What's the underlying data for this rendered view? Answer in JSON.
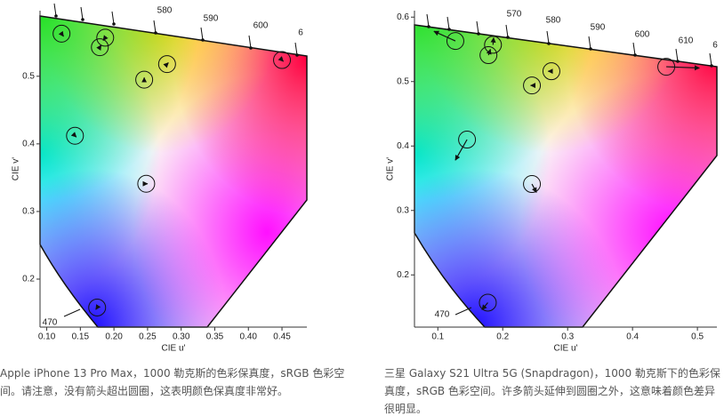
{
  "chart_data": [
    {
      "type": "scatter",
      "x_label": "CIE u'",
      "y_label": "CIE v'",
      "caption": "Apple iPhone 13 Pro Max，1000 勒克斯的色彩保真度，sRGB 色彩空间。请注意，没有箭头超出圆圈，这表明颜色保真度非常好。",
      "xlim": [
        0.09,
        0.487
      ],
      "ylim": [
        0.129,
        0.597
      ],
      "xticks": [
        {
          "value": 0.1,
          "label": "0.10"
        },
        0.15,
        {
          "value": 0.2,
          "label": "0.20"
        },
        0.25,
        {
          "value": 0.3,
          "label": "0.30"
        },
        0.35,
        {
          "value": 0.4,
          "label": "0.40"
        },
        0.45
      ],
      "yticks": [
        0.2,
        0.3,
        0.4,
        0.5
      ],
      "wavelength_labels": [
        "580",
        "590",
        "600",
        "6",
        "470"
      ],
      "targets": {
        "x": [
          0.122,
          0.179,
          0.187,
          0.279,
          0.245,
          0.45,
          0.142,
          0.248,
          0.175
        ],
        "values": [
          0.563,
          0.543,
          0.557,
          0.518,
          0.495,
          0.524,
          0.412,
          0.341,
          0.158
        ]
      },
      "measured": {
        "x": [
          0.125,
          0.181,
          0.184,
          0.281,
          0.245,
          0.452,
          0.144,
          0.25,
          0.173
        ],
        "values": [
          0.559,
          0.546,
          0.553,
          0.52,
          0.498,
          0.522,
          0.41,
          0.341,
          0.155
        ]
      }
    },
    {
      "type": "scatter",
      "x_label": "CIE u'",
      "y_label": "CIE v'",
      "caption": "三星 Galaxy S21 Ultra 5G (Snapdragon)，1000 勒克斯下的色彩保真度，sRGB 色彩空间。许多箭头延伸到圆圈之外，这意味着颜色差异很明显。",
      "xlim": [
        0.064,
        0.53
      ],
      "ylim": [
        0.119,
        0.61
      ],
      "xticks": [
        0.1,
        0.2,
        0.3,
        0.4,
        0.5
      ],
      "yticks": [
        0.2,
        0.3,
        0.4,
        0.5,
        0.6
      ],
      "wavelength_labels": [
        "570",
        "580",
        "590",
        "600",
        "610",
        "6",
        "470"
      ],
      "targets": {
        "x": [
          0.127,
          0.185,
          0.178,
          0.275,
          0.245,
          0.452,
          0.145,
          0.245,
          0.177
        ],
        "values": [
          0.563,
          0.557,
          0.541,
          0.516,
          0.494,
          0.523,
          0.41,
          0.341,
          0.157
        ]
      },
      "measured": {
        "x": [
          0.094,
          0.186,
          0.181,
          0.27,
          0.243,
          0.503,
          0.127,
          0.252,
          0.168
        ],
        "values": [
          0.578,
          0.568,
          0.55,
          0.516,
          0.494,
          0.521,
          0.378,
          0.328,
          0.146
        ]
      }
    }
  ]
}
